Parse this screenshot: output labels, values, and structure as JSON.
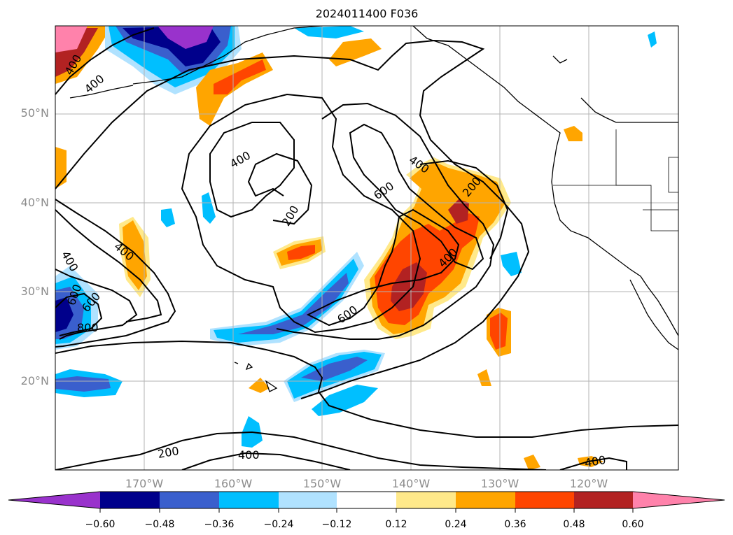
{
  "title": "2024011400 F036",
  "latitude_labels": [
    "50°N",
    "40°N",
    "30°N",
    "20°N"
  ],
  "longitude_labels": [
    "170°W",
    "160°W",
    "150°W",
    "140°W",
    "130°W",
    "120°W"
  ],
  "contour_labels": [
    "400",
    "400",
    "400",
    "200",
    "600",
    "400",
    "200",
    "400",
    "400",
    "600",
    "600",
    "400",
    "800",
    "600",
    "200",
    "400",
    "400"
  ],
  "colorbar": {
    "tick_labels": [
      "−0.60",
      "−0.48",
      "−0.36",
      "−0.24",
      "−0.12",
      "0.12",
      "0.24",
      "0.36",
      "0.48",
      "0.60"
    ],
    "colors": [
      "#9932cc",
      "#00008b",
      "#3a5fcd",
      "#00bfff",
      "#b0e2ff",
      "#ffffff",
      "#ffe98a",
      "#ffa500",
      "#ff4500",
      "#b22222",
      "#ff82ab"
    ]
  },
  "chart_data": {
    "type": "map",
    "title": "2024011400 F036",
    "lon_range": [
      -180,
      -110
    ],
    "lat_range": [
      10,
      60
    ],
    "gridlines": true,
    "filled_levels": [
      -0.6,
      -0.48,
      -0.36,
      -0.24,
      -0.12,
      0.12,
      0.24,
      0.36,
      0.48,
      0.6
    ],
    "contour_levels": [
      200,
      400,
      600,
      800
    ]
  }
}
